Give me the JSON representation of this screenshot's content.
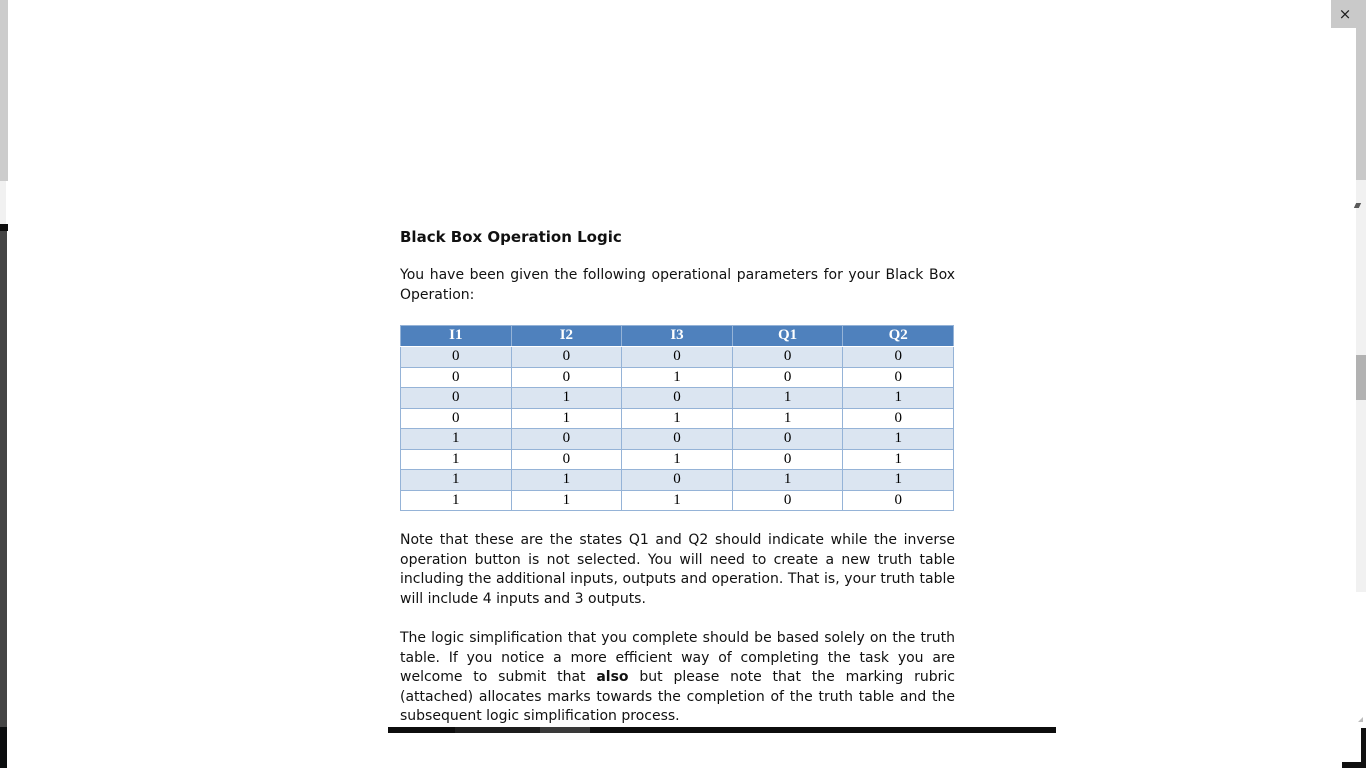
{
  "window": {
    "close_icon": "×"
  },
  "document": {
    "title": "Black Box Operation Logic",
    "intro": "You have been given the following operational parameters for your Black Box Operation:",
    "table": {
      "headers": [
        "I1",
        "I2",
        "I3",
        "Q1",
        "Q2"
      ],
      "rows": [
        [
          "0",
          "0",
          "0",
          "0",
          "0"
        ],
        [
          "0",
          "0",
          "1",
          "0",
          "0"
        ],
        [
          "0",
          "1",
          "0",
          "1",
          "1"
        ],
        [
          "0",
          "1",
          "1",
          "1",
          "0"
        ],
        [
          "1",
          "0",
          "0",
          "0",
          "1"
        ],
        [
          "1",
          "0",
          "1",
          "0",
          "1"
        ],
        [
          "1",
          "1",
          "0",
          "1",
          "1"
        ],
        [
          "1",
          "1",
          "1",
          "0",
          "0"
        ]
      ]
    },
    "note_paragraph": "Note that these are the states Q1 and Q2 should indicate while the inverse operation button is not selected. You will need to create a new truth table including the additional inputs, outputs and operation. That is, your truth table will include 4 inputs and 3 outputs.",
    "closing_paragraph": {
      "before": "The logic simplification that you complete should be based solely on the truth table. If you notice a more efficient way of completing the task you are welcome to submit that ",
      "bold": "also",
      "after": " but please note that the marking rubric (attached) allocates marks towards the completion of the truth table and the subsequent logic simplification process."
    }
  },
  "colors": {
    "table_header_bg": "#4f81bd",
    "table_border": "#95b3d7",
    "table_band_bg": "#dbe5f1",
    "scroll_track": "#f1f1f1",
    "scroll_thumb": "#b2b2b2",
    "titlebar_gray": "#c9c9c9"
  }
}
